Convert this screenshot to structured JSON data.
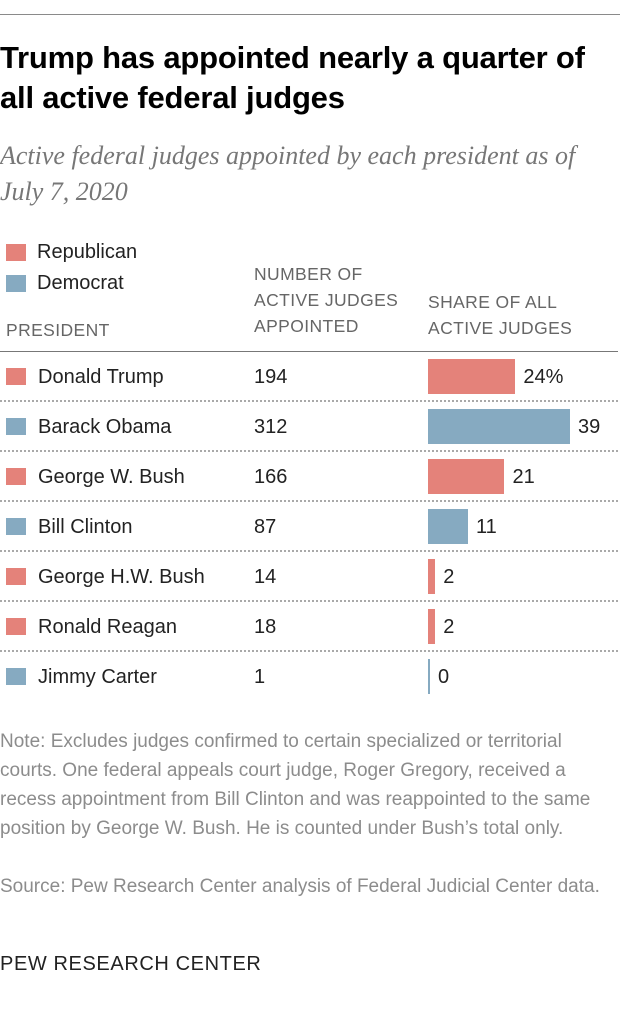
{
  "header": {
    "title": "Trump has appointed nearly a quarter of all active federal judges",
    "subtitle": "Active federal judges appointed by each president as of July 7, 2020"
  },
  "legend": [
    {
      "label": "Republican",
      "color": "#e4827a"
    },
    {
      "label": "Democrat",
      "color": "#86aac1"
    }
  ],
  "columns": {
    "president": "PRESIDENT",
    "count": "NUMBER OF ACTIVE JUDGES APPOINTED",
    "share": "SHARE OF ALL ACTIVE JUDGES"
  },
  "chart_data": {
    "type": "table",
    "title": "Trump has appointed nearly a quarter of all active federal judges",
    "subtitle": "Active federal judges appointed by each president as of July 7, 2020",
    "categories": [
      "Donald Trump",
      "Barack Obama",
      "George W. Bush",
      "Bill Clinton",
      "George H.W. Bush",
      "Ronald Reagan",
      "Jimmy Carter"
    ],
    "party": [
      "Republican",
      "Democrat",
      "Republican",
      "Democrat",
      "Republican",
      "Republican",
      "Democrat"
    ],
    "series": [
      {
        "name": "NUMBER OF ACTIVE JUDGES APPOINTED",
        "values": [
          194,
          312,
          166,
          87,
          14,
          18,
          1
        ]
      },
      {
        "name": "SHARE OF ALL ACTIVE JUDGES",
        "values": [
          24,
          39,
          21,
          11,
          2,
          2,
          0
        ],
        "labels": [
          "24%",
          "39",
          "21",
          "11",
          "2",
          "2",
          "0"
        ]
      }
    ],
    "xlim": [
      0,
      39
    ],
    "colors": {
      "Republican": "#e4827a",
      "Democrat": "#86aac1"
    }
  },
  "footer": {
    "note": "Note: Excludes judges confirmed to certain specialized or territorial courts. One federal appeals court judge, Roger Gregory, received a recess appointment from Bill Clinton and was reappointed to the same position by George W. Bush. He is counted under Bush’s total only.",
    "source": "Source: Pew Research Center analysis of Federal Judicial Center data.",
    "brand": "PEW RESEARCH CENTER"
  }
}
